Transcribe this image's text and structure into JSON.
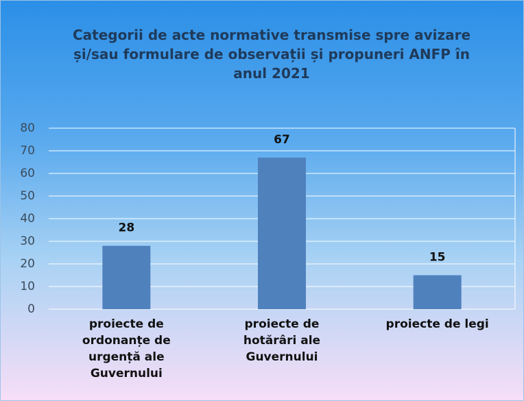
{
  "chart_data": {
    "type": "bar",
    "title": "Categorii de acte normative transmise spre avizare și/sau formulare de observații și propuneri ANFP în anul 2021",
    "categories": [
      "proiecte de ordonanțe de urgență ale Guvernului",
      "proiecte de hotărâri ale Guvernului",
      "proiecte de legi"
    ],
    "values": [
      28,
      67,
      15
    ],
    "color": "#4f81bd",
    "ylim": [
      0,
      80
    ],
    "yticks": [
      0,
      10,
      20,
      30,
      40,
      50,
      60,
      70,
      80
    ],
    "grid": true
  }
}
